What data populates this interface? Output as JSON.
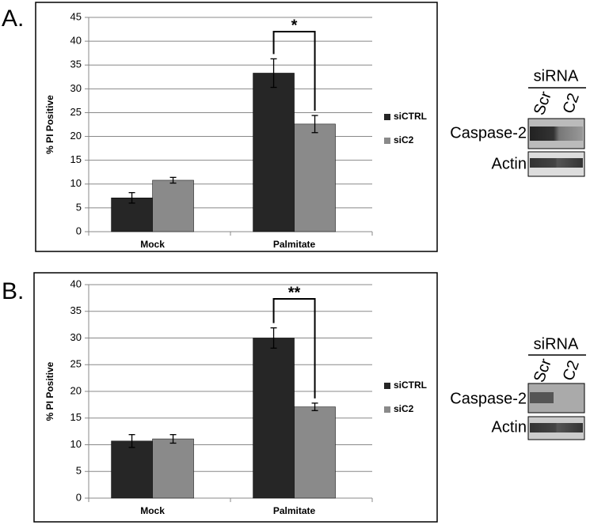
{
  "chart_data": [
    {
      "type": "bar",
      "panel_label": "A.",
      "ylabel": "% PI Positive",
      "categories": [
        "Mock",
        "Palmitate"
      ],
      "series": [
        {
          "name": "siCTRL",
          "color": "#262626",
          "values": [
            7.1,
            33.3
          ],
          "errors": [
            1.1,
            3.0
          ]
        },
        {
          "name": "siC2",
          "color": "#8a8a8a",
          "values": [
            10.8,
            22.6
          ],
          "errors": [
            0.6,
            1.8
          ]
        }
      ],
      "ylim": [
        0,
        45
      ],
      "yticks": [
        0,
        5,
        10,
        15,
        20,
        25,
        30,
        35,
        40,
        45
      ],
      "grid": true,
      "legend": "right",
      "significance": "*"
    },
    {
      "type": "bar",
      "panel_label": "B.",
      "ylabel": "% PI Positive",
      "categories": [
        "Mock",
        "Palmitate"
      ],
      "series": [
        {
          "name": "siCTRL",
          "color": "#262626",
          "values": [
            10.7,
            30.0
          ],
          "errors": [
            1.2,
            1.9
          ]
        },
        {
          "name": "siC2",
          "color": "#8a8a8a",
          "values": [
            11.1,
            17.1
          ],
          "errors": [
            0.8,
            0.7
          ]
        }
      ],
      "ylim": [
        0,
        40
      ],
      "yticks": [
        0,
        5,
        10,
        15,
        20,
        25,
        30,
        35,
        40
      ],
      "grid": true,
      "legend": "right",
      "significance": "**"
    }
  ],
  "blots": [
    {
      "header": "siRNA",
      "lanes": [
        "Scr",
        "C2"
      ],
      "rows": [
        "Caspase-2",
        "Actin"
      ]
    },
    {
      "header": "siRNA",
      "lanes": [
        "Scr",
        "C2"
      ],
      "rows": [
        "Caspase-2",
        "Actin"
      ]
    }
  ]
}
